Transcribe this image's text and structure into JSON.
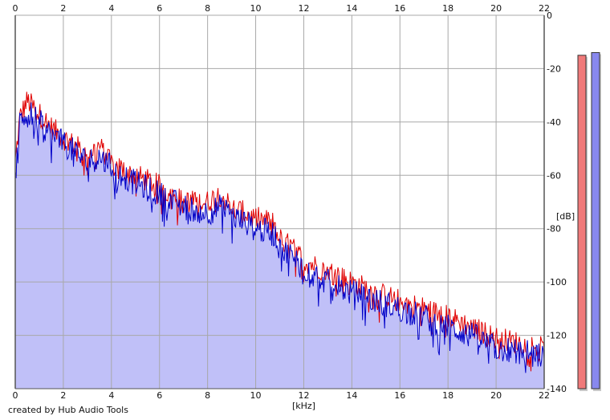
{
  "credit": "created by Hub Audio Tools",
  "chart_data": {
    "type": "line",
    "title": "",
    "xlabel": "[kHz]",
    "ylabel": "[dB]",
    "xlim": [
      0,
      22
    ],
    "ylim": [
      -140,
      0
    ],
    "x_ticks": [
      0,
      2,
      4,
      6,
      8,
      10,
      12,
      14,
      16,
      18,
      20,
      22
    ],
    "y_ticks": [
      0,
      -20,
      -40,
      -60,
      -80,
      -100,
      -120,
      -140
    ],
    "grid": true,
    "series": [
      {
        "color": "#e00000",
        "x": [
          0,
          0.2,
          0.5,
          1,
          1.5,
          2,
          3,
          3.5,
          4,
          5,
          6,
          7,
          8,
          8.5,
          9,
          10,
          10.8,
          11,
          11.5,
          12,
          13,
          14,
          15,
          16,
          17,
          18,
          19,
          20,
          21,
          22
        ],
        "values": [
          -55,
          -38,
          -32,
          -37,
          -42,
          -46,
          -52,
          -49,
          -56,
          -60,
          -64,
          -70,
          -70,
          -67,
          -72,
          -76,
          -78,
          -84,
          -87,
          -92,
          -96,
          -100,
          -104,
          -107,
          -110,
          -113,
          -117,
          -121,
          -123,
          -125
        ]
      },
      {
        "color": "#0000c8",
        "x": [
          0,
          0.2,
          0.5,
          1,
          1.5,
          2,
          3,
          3.5,
          4,
          5,
          6,
          7,
          8,
          8.5,
          9,
          10,
          10.8,
          11,
          11.5,
          12,
          13,
          14,
          15,
          16,
          17,
          18,
          19,
          20,
          21,
          22
        ],
        "values": [
          -62,
          -40,
          -36,
          -40,
          -45,
          -48,
          -55,
          -53,
          -57,
          -63,
          -67,
          -72,
          -74,
          -72,
          -75,
          -80,
          -82,
          -88,
          -90,
          -95,
          -100,
          -104,
          -107,
          -110,
          -113,
          -117,
          -120,
          -125,
          -126,
          -128
        ]
      }
    ],
    "fill_color": "#c0c0f8",
    "level_meters": [
      {
        "color": "#f07a7a",
        "level_db": -15
      },
      {
        "color": "#8888ee",
        "level_db": -14
      }
    ]
  }
}
